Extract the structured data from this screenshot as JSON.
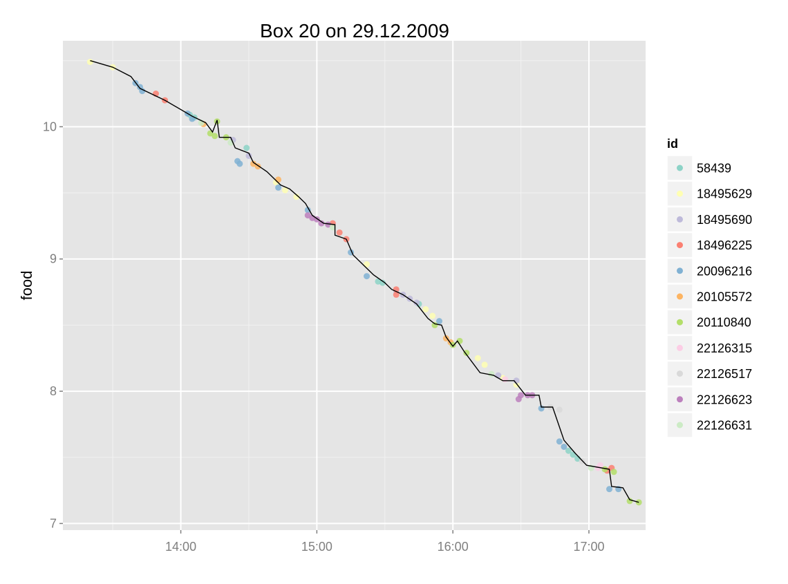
{
  "chart_data": {
    "type": "scatter",
    "title": "Box 20 on 29.12.2009",
    "xlabel": "",
    "ylabel": "food",
    "x_unit": "time",
    "xlim": [
      "13:08",
      "17:25"
    ],
    "ylim": [
      6.95,
      10.65
    ],
    "x_ticks": [
      "14:00",
      "15:00",
      "16:00",
      "17:00"
    ],
    "y_ticks": [
      7,
      8,
      9,
      10
    ],
    "grid": true,
    "legend_title": "id",
    "legend_position": "right",
    "series": [
      {
        "name": "58439",
        "color": "#8DD3C7",
        "points": [
          [
            "14:04",
            10.09
          ],
          [
            "14:06",
            10.07
          ],
          [
            "14:29",
            9.84
          ],
          [
            "15:27",
            8.83
          ],
          [
            "15:29",
            8.82
          ],
          [
            "15:45",
            8.66
          ],
          [
            "16:51",
            7.55
          ],
          [
            "16:53",
            7.52
          ],
          [
            "16:55",
            7.49
          ]
        ]
      },
      {
        "name": "18495629",
        "color": "#FFFFB3",
        "points": [
          [
            "13:20",
            10.49
          ],
          [
            "13:30",
            10.45
          ],
          [
            "14:42",
            9.58
          ],
          [
            "14:46",
            9.52
          ],
          [
            "14:51",
            9.47
          ],
          [
            "15:22",
            8.96
          ],
          [
            "15:48",
            8.62
          ],
          [
            "15:51",
            8.57
          ],
          [
            "16:11",
            8.25
          ],
          [
            "16:14",
            8.2
          ],
          [
            "16:22",
            8.1
          ],
          [
            "16:28",
            8.05
          ]
        ]
      },
      {
        "name": "18495690",
        "color": "#BEBADA",
        "points": [
          [
            "14:23",
            9.9
          ],
          [
            "14:30",
            9.78
          ],
          [
            "15:35",
            8.76
          ],
          [
            "15:38",
            8.73
          ],
          [
            "15:41",
            8.7
          ],
          [
            "15:44",
            8.67
          ],
          [
            "16:20",
            8.12
          ],
          [
            "16:28",
            8.08
          ]
        ]
      },
      {
        "name": "18496225",
        "color": "#FB8072",
        "points": [
          [
            "13:49",
            10.25
          ],
          [
            "13:53",
            10.2
          ],
          [
            "15:07",
            9.27
          ],
          [
            "15:10",
            9.2
          ],
          [
            "15:13",
            9.15
          ],
          [
            "15:35",
            8.77
          ],
          [
            "15:35",
            8.73
          ],
          [
            "17:08",
            7.4
          ],
          [
            "17:10",
            7.42
          ]
        ]
      },
      {
        "name": "20096216",
        "color": "#80B1D3",
        "points": [
          [
            "13:40",
            10.33
          ],
          [
            "13:42",
            10.3
          ],
          [
            "13:43",
            10.27
          ],
          [
            "14:03",
            10.1
          ],
          [
            "14:05",
            10.06
          ],
          [
            "14:25",
            9.74
          ],
          [
            "14:26",
            9.72
          ],
          [
            "14:43",
            9.54
          ],
          [
            "14:56",
            9.37
          ],
          [
            "15:15",
            9.05
          ],
          [
            "15:22",
            8.87
          ],
          [
            "15:54",
            8.53
          ],
          [
            "16:39",
            7.87
          ],
          [
            "16:47",
            7.62
          ],
          [
            "16:49",
            7.58
          ],
          [
            "17:09",
            7.26
          ],
          [
            "17:13",
            7.26
          ]
        ]
      },
      {
        "name": "20105572",
        "color": "#FDB462",
        "points": [
          [
            "14:10",
            10.02
          ],
          [
            "14:32",
            9.72
          ],
          [
            "14:34",
            9.7
          ],
          [
            "14:43",
            9.6
          ],
          [
            "15:57",
            8.4
          ],
          [
            "15:59",
            8.37
          ]
        ]
      },
      {
        "name": "20110840",
        "color": "#B3DE69",
        "points": [
          [
            "14:13",
            9.95
          ],
          [
            "14:15",
            9.93
          ],
          [
            "14:16",
            10.04
          ],
          [
            "14:20",
            9.92
          ],
          [
            "15:52",
            8.5
          ],
          [
            "16:00",
            8.35
          ],
          [
            "16:03",
            8.38
          ],
          [
            "16:06",
            8.29
          ],
          [
            "17:07",
            7.41
          ],
          [
            "17:11",
            7.39
          ],
          [
            "17:18",
            7.17
          ],
          [
            "17:22",
            7.16
          ]
        ]
      },
      {
        "name": "22126315",
        "color": "#FCCDE5",
        "points": [
          [
            "16:23",
            8.09
          ],
          [
            "17:04",
            7.42
          ],
          [
            "17:05",
            7.44
          ]
        ]
      },
      {
        "name": "22126517",
        "color": "#D9D9D9",
        "points": [
          [
            "16:43",
            7.88
          ],
          [
            "16:47",
            7.86
          ],
          [
            "16:57",
            7.47
          ]
        ]
      },
      {
        "name": "22126623",
        "color": "#BC80BD",
        "points": [
          [
            "14:56",
            9.33
          ],
          [
            "14:58",
            9.31
          ],
          [
            "15:00",
            9.3
          ],
          [
            "15:02",
            9.27
          ],
          [
            "15:05",
            9.26
          ],
          [
            "16:29",
            7.94
          ],
          [
            "16:30",
            7.97
          ],
          [
            "16:33",
            7.97
          ],
          [
            "16:35",
            7.97
          ]
        ]
      },
      {
        "name": "22126631",
        "color": "#CCEBC5",
        "points": [
          [
            "14:09",
            10.03
          ],
          [
            "14:22",
            9.88
          ],
          [
            "15:07",
            9.24
          ],
          [
            "16:17",
            8.13
          ],
          [
            "17:01",
            7.42
          ]
        ]
      }
    ],
    "line_series": {
      "color": "#000000",
      "points": [
        [
          "13:20",
          10.5
        ],
        [
          "13:30",
          10.45
        ],
        [
          "13:38",
          10.38
        ],
        [
          "13:42",
          10.29
        ],
        [
          "13:53",
          10.2
        ],
        [
          "14:05",
          10.08
        ],
        [
          "14:11",
          10.03
        ],
        [
          "14:14",
          9.96
        ],
        [
          "14:16",
          10.05
        ],
        [
          "14:17",
          9.92
        ],
        [
          "14:22",
          9.92
        ],
        [
          "14:24",
          9.84
        ],
        [
          "14:30",
          9.8
        ],
        [
          "14:32",
          9.73
        ],
        [
          "14:38",
          9.66
        ],
        [
          "14:44",
          9.56
        ],
        [
          "14:48",
          9.53
        ],
        [
          "14:52",
          9.47
        ],
        [
          "14:55",
          9.42
        ],
        [
          "14:58",
          9.33
        ],
        [
          "15:03",
          9.27
        ],
        [
          "15:08",
          9.26
        ],
        [
          "15:08",
          9.18
        ],
        [
          "15:13",
          9.15
        ],
        [
          "15:16",
          9.03
        ],
        [
          "15:25",
          8.88
        ],
        [
          "15:30",
          8.82
        ],
        [
          "15:33",
          8.77
        ],
        [
          "15:38",
          8.73
        ],
        [
          "15:44",
          8.66
        ],
        [
          "15:49",
          8.55
        ],
        [
          "15:52",
          8.51
        ],
        [
          "15:55",
          8.5
        ],
        [
          "15:57",
          8.41
        ],
        [
          "16:00",
          8.34
        ],
        [
          "16:02",
          8.38
        ],
        [
          "16:05",
          8.3
        ],
        [
          "16:12",
          8.14
        ],
        [
          "16:18",
          8.12
        ],
        [
          "16:22",
          8.08
        ],
        [
          "16:27",
          8.08
        ],
        [
          "16:32",
          7.97
        ],
        [
          "16:38",
          7.97
        ],
        [
          "16:39",
          7.88
        ],
        [
          "16:44",
          7.88
        ],
        [
          "16:49",
          7.63
        ],
        [
          "16:54",
          7.53
        ],
        [
          "16:59",
          7.44
        ],
        [
          "17:09",
          7.41
        ],
        [
          "17:10",
          7.28
        ],
        [
          "17:15",
          7.27
        ],
        [
          "17:18",
          7.18
        ],
        [
          "17:22",
          7.16
        ]
      ]
    }
  }
}
